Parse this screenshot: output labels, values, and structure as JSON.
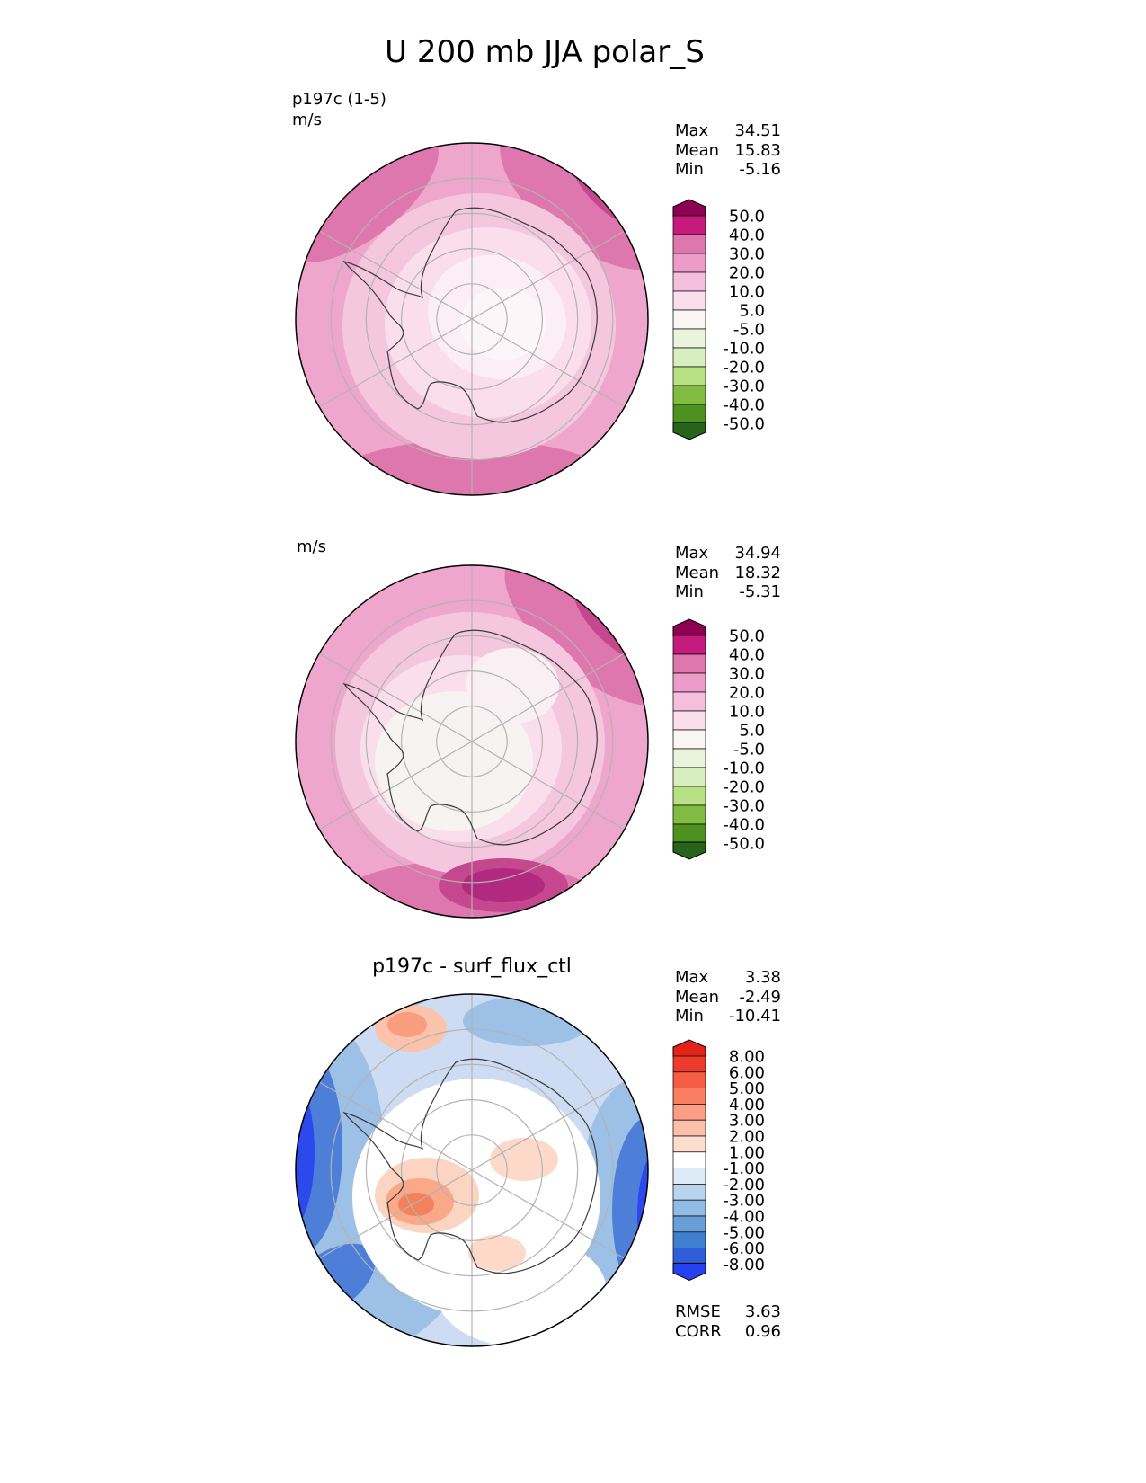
{
  "title": "U 200 mb JJA polar_S",
  "panels": [
    {
      "label": "p197c (1-5)",
      "units": "m/s",
      "stats": [
        {
          "name": "Max",
          "value": "34.51"
        },
        {
          "name": "Mean",
          "value": "15.83"
        },
        {
          "name": "Min",
          "value": "-5.16"
        }
      ],
      "colorbar": {
        "colors": [
          "#8e0152",
          "#c51b7d",
          "#de77ae",
          "#ec9cc8",
          "#f4bedd",
          "#fadeec",
          "#f8f5f2",
          "#eaf4dc",
          "#d7eec1",
          "#b8e186",
          "#7fbc41",
          "#4d9221",
          "#276419"
        ],
        "labels": [
          "50.0",
          "40.0",
          "30.0",
          "20.0",
          "10.0",
          "5.0",
          "-5.0",
          "-10.0",
          "-20.0",
          "-30.0",
          "-40.0",
          "-50.0"
        ]
      }
    },
    {
      "units": "m/s",
      "stats": [
        {
          "name": "Max",
          "value": "34.94"
        },
        {
          "name": "Mean",
          "value": "18.32"
        },
        {
          "name": "Min",
          "value": "-5.31"
        }
      ],
      "colorbar": {
        "colors": [
          "#8e0152",
          "#c51b7d",
          "#de77ae",
          "#ec9cc8",
          "#f4bedd",
          "#fadeec",
          "#f8f5f2",
          "#eaf4dc",
          "#d7eec1",
          "#b8e186",
          "#7fbc41",
          "#4d9221",
          "#276419"
        ],
        "labels": [
          "50.0",
          "40.0",
          "30.0",
          "20.0",
          "10.0",
          "5.0",
          "-5.0",
          "-10.0",
          "-20.0",
          "-30.0",
          "-40.0",
          "-50.0"
        ]
      }
    },
    {
      "label": "p197c - surf_flux_ctl",
      "stats": [
        {
          "name": "Max",
          "value": "3.38"
        },
        {
          "name": "Mean",
          "value": "-2.49"
        },
        {
          "name": "Min",
          "value": "-10.41"
        }
      ],
      "metrics": [
        {
          "name": "RMSE",
          "value": "3.63"
        },
        {
          "name": "CORR",
          "value": "0.96"
        }
      ],
      "colorbar": {
        "colors": [
          "#e32218",
          "#ee3c2c",
          "#f55e45",
          "#f97e62",
          "#fb9e84",
          "#fcbfa9",
          "#fedcce",
          "#ffffff",
          "#dce9f7",
          "#b9d5ee",
          "#92bce3",
          "#679fd6",
          "#3f7fd0",
          "#2e5fd8",
          "#2741f2"
        ],
        "labels": [
          "8.00",
          "6.00",
          "5.00",
          "4.00",
          "3.00",
          "2.00",
          "1.00",
          "-1.00",
          "-2.00",
          "-3.00",
          "-4.00",
          "-5.00",
          "-6.00",
          "-8.00"
        ]
      }
    }
  ],
  "chart_data": [
    {
      "type": "heatmap",
      "title": "p197c (1-5)",
      "variable": "U 200 mb",
      "season": "JJA",
      "projection": "polar_S southern polar stereographic",
      "units": "m/s",
      "stats": {
        "max": 34.51,
        "mean": 15.83,
        "min": -5.16
      },
      "contour_levels": [
        -50,
        -40,
        -30,
        -20,
        -10,
        -5,
        5,
        10,
        20,
        30,
        40,
        50
      ],
      "palette": "diverging pink (positive) to green (negative)",
      "legend_position": "right",
      "description": "Zonal wind: near-zero light values over the pole and Antarctica, 10-30 m/s pink ring toward the map edge, >30 m/s magenta maxima at the upper-right rim and along the bottom rim."
    },
    {
      "type": "heatmap",
      "title": "surf_flux_ctl",
      "variable": "U 200 mb",
      "season": "JJA",
      "projection": "polar_S southern polar stereographic",
      "units": "m/s",
      "stats": {
        "max": 34.94,
        "mean": 18.32,
        "min": -5.31
      },
      "contour_levels": [
        -50,
        -40,
        -30,
        -20,
        -10,
        -5,
        5,
        10,
        20,
        30,
        40,
        50
      ],
      "palette": "diverging pink (positive) to green (negative)",
      "legend_position": "right",
      "description": "Control run zonal wind: light near-zero core offset left of the pole, 10-30 m/s pink ring outward, >30 m/s magenta maxima at the upper-right rim and a distinct >30 m/s oval near the bottom rim."
    },
    {
      "type": "heatmap",
      "title": "p197c - surf_flux_ctl",
      "variable": "U 200 mb difference",
      "season": "JJA",
      "projection": "polar_S southern polar stereographic",
      "units": "m/s",
      "stats": {
        "max": 3.38,
        "mean": -2.49,
        "min": -10.41
      },
      "metrics": {
        "rmse": 3.63,
        "corr": 0.96
      },
      "contour_levels": [
        -8,
        -6,
        -5,
        -4,
        -3,
        -2,
        -1,
        1,
        2,
        3,
        4,
        5,
        6,
        8
      ],
      "palette": "diverging red (positive) to blue (negative)",
      "legend_position": "right",
      "description": "Difference map: near-zero white over most of the interior, weak positive (red) patches over West Antarctica left of the pole and near the top rim, negative (blue) ring around the map edge with strongest deficits (< -8 m/s) at the left and right rims."
    }
  ]
}
